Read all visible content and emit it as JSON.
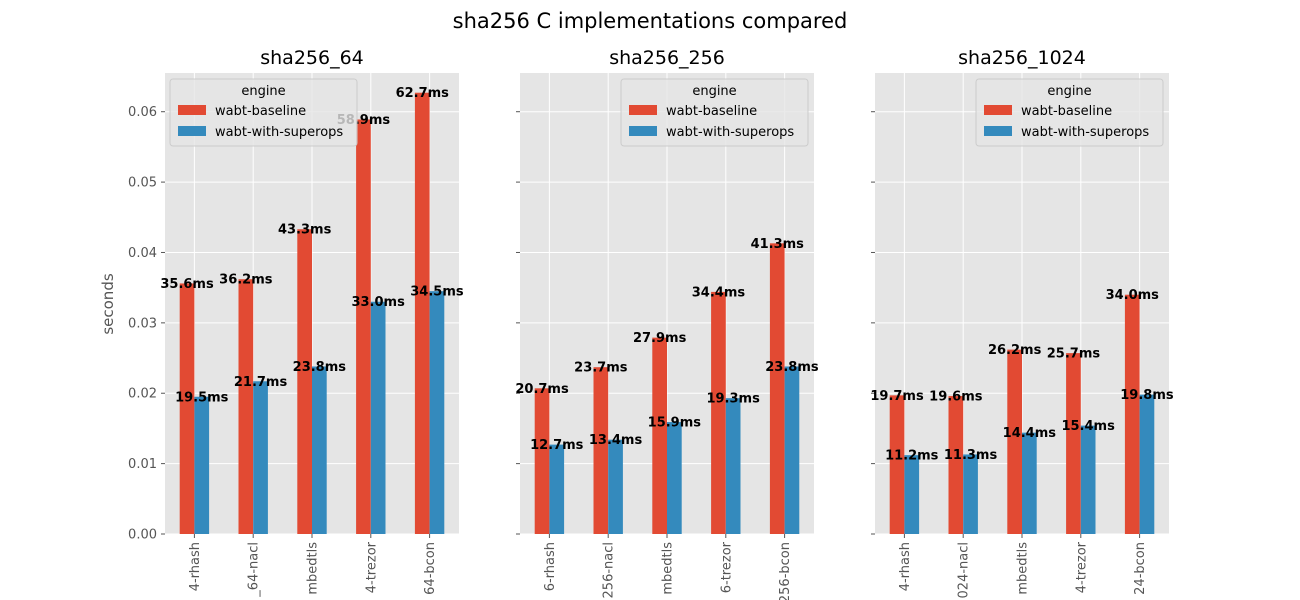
{
  "chart_data": {
    "type": "bar",
    "title": "sha256 C implementations compared",
    "ylabel": "seconds",
    "ylim": [
      0,
      0.0655
    ],
    "yticks": [
      "0.00",
      "0.01",
      "0.02",
      "0.03",
      "0.04",
      "0.05",
      "0.06"
    ],
    "grid": true,
    "legend": {
      "title": "engine",
      "entries": [
        {
          "name": "wabt-baseline",
          "color": "#E24A33"
        },
        {
          "name": "wabt-with-superops",
          "color": "#348ABD"
        }
      ]
    },
    "panels": [
      {
        "title": "sha256_64",
        "legend_position": "top-left",
        "categories": [
          "4-rhash",
          "_64-nacl",
          "mbedtls",
          "4-trezor",
          "64-bcon"
        ],
        "series": [
          {
            "name": "wabt-baseline",
            "values": [
              0.0356,
              0.0362,
              0.0433,
              0.0589,
              0.0627
            ],
            "labels": [
              "35.6ms",
              "36.2ms",
              "43.3ms",
              "58.9ms",
              "62.7ms"
            ]
          },
          {
            "name": "wabt-with-superops",
            "values": [
              0.0195,
              0.0217,
              0.0238,
              0.033,
              0.0345
            ],
            "labels": [
              "19.5ms",
              "21.7ms",
              "23.8ms",
              "33.0ms",
              "34.5ms"
            ]
          }
        ]
      },
      {
        "title": "sha256_256",
        "legend_position": "top-right",
        "categories": [
          "6-rhash",
          "256-nacl",
          "mbedtls",
          "6-trezor",
          "256-bcon"
        ],
        "series": [
          {
            "name": "wabt-baseline",
            "values": [
              0.0207,
              0.0237,
              0.0279,
              0.0344,
              0.0413
            ],
            "labels": [
              "20.7ms",
              "23.7ms",
              "27.9ms",
              "34.4ms",
              "41.3ms"
            ]
          },
          {
            "name": "wabt-with-superops",
            "values": [
              0.0127,
              0.0134,
              0.0159,
              0.0193,
              0.0238
            ],
            "labels": [
              "12.7ms",
              "13.4ms",
              "15.9ms",
              "19.3ms",
              "23.8ms"
            ]
          }
        ]
      },
      {
        "title": "sha256_1024",
        "legend_position": "top-right",
        "categories": [
          "4-rhash",
          "024-nacl",
          "mbedtls",
          "4-trezor",
          "24-bcon"
        ],
        "series": [
          {
            "name": "wabt-baseline",
            "values": [
              0.0197,
              0.0196,
              0.0262,
              0.0257,
              0.034
            ],
            "labels": [
              "19.7ms",
              "19.6ms",
              "26.2ms",
              "25.7ms",
              "34.0ms"
            ]
          },
          {
            "name": "wabt-with-superops",
            "values": [
              0.0112,
              0.0113,
              0.0144,
              0.0154,
              0.0198
            ],
            "labels": [
              "11.2ms",
              "11.3ms",
              "14.4ms",
              "15.4ms",
              "19.8ms"
            ]
          }
        ]
      }
    ]
  }
}
